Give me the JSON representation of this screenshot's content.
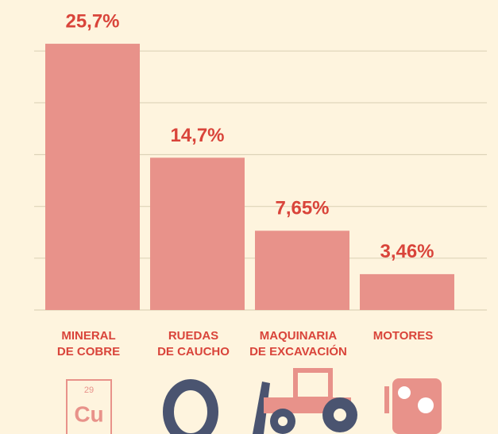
{
  "chart_data": {
    "type": "bar",
    "categories": [
      [
        "MINERAL",
        "DE COBRE"
      ],
      [
        "RUEDAS",
        "DE CAUCHO"
      ],
      [
        "MAQUINARIA",
        "DE EXCAVACIÓN"
      ],
      [
        "MOTORES"
      ]
    ],
    "values": [
      25.7,
      14.7,
      7.65,
      3.46
    ],
    "value_labels": [
      "25,7%",
      "14,7%",
      "7,65%",
      "3,46%"
    ],
    "color": "#e8928a",
    "ylim": [
      0,
      30
    ],
    "yticks": [
      0,
      5,
      10,
      15,
      20,
      25
    ],
    "grid": true
  },
  "icons": {
    "element_number": "29",
    "element_symbol": "Cu"
  }
}
